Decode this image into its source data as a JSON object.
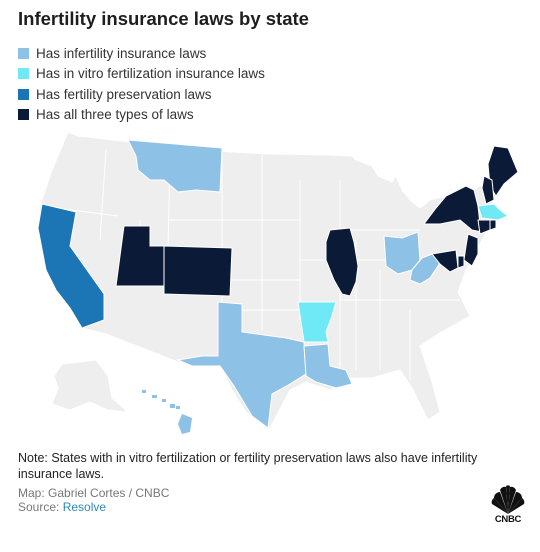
{
  "title": "Infertility insurance laws by state",
  "legend": [
    {
      "label": "Has infertility insurance laws",
      "color": "#8ec1e6"
    },
    {
      "label": "Has in vitro fertilization insurance laws",
      "color": "#6ee9f5"
    },
    {
      "label": "Has fertility preservation laws",
      "color": "#1c75b5"
    },
    {
      "label": "Has all three types of laws",
      "color": "#0b1a36"
    }
  ],
  "colors": {
    "base": "#eeeeee",
    "border": "#ffffff",
    "infertility": "#8ec1e6",
    "ivf": "#6ee9f5",
    "preservation": "#1c75b5",
    "all_three": "#0b1a36"
  },
  "map_data": {
    "type": "choropleth",
    "region": "United States",
    "states": [
      {
        "state": "Montana",
        "category": "infertility"
      },
      {
        "state": "Texas",
        "category": "infertility"
      },
      {
        "state": "Louisiana",
        "category": "infertility"
      },
      {
        "state": "Ohio",
        "category": "infertility"
      },
      {
        "state": "West Virginia",
        "category": "infertility"
      },
      {
        "state": "Hawaii",
        "category": "infertility"
      },
      {
        "state": "Arkansas",
        "category": "ivf"
      },
      {
        "state": "Massachusetts",
        "category": "ivf"
      },
      {
        "state": "California",
        "category": "preservation"
      },
      {
        "state": "Utah",
        "category": "all_three"
      },
      {
        "state": "Colorado",
        "category": "all_three"
      },
      {
        "state": "Illinois",
        "category": "all_three"
      },
      {
        "state": "New York",
        "category": "all_three"
      },
      {
        "state": "Maine",
        "category": "all_three"
      },
      {
        "state": "New Hampshire",
        "category": "all_three"
      },
      {
        "state": "Connecticut",
        "category": "all_three"
      },
      {
        "state": "Rhode Island",
        "category": "all_three"
      },
      {
        "state": "New Jersey",
        "category": "all_three"
      },
      {
        "state": "Delaware",
        "category": "all_three"
      },
      {
        "state": "Maryland",
        "category": "all_three"
      }
    ]
  },
  "note": "Note: States with in vitro fertilization or fertility preservation laws also have infertility insurance laws.",
  "credit": "Map: Gabriel Cortes / CNBC",
  "source_prefix": "Source: ",
  "source_name": "Resolve",
  "logo_text": "CNBC"
}
